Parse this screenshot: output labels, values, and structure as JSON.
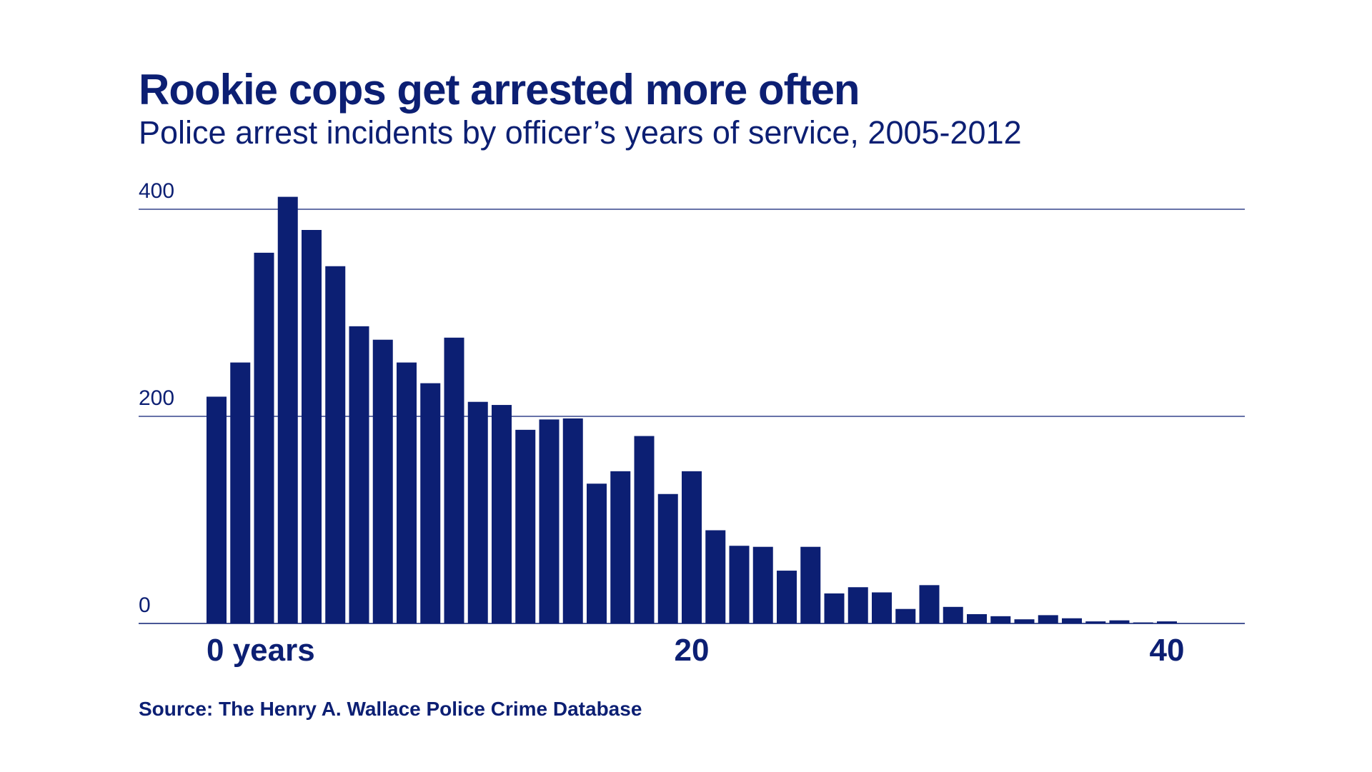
{
  "header": {
    "title": "Rookie cops get arrested more often",
    "subtitle": "Police arrest incidents by officer’s years of service, 2005-2012"
  },
  "footer": {
    "source": "Source: The Henry A. Wallace Police Crime Database"
  },
  "colors": {
    "bar": "#0c1f73",
    "text": "#0c1f73",
    "grid": "#0c1f73",
    "background": "#ffffff"
  },
  "chart_data": {
    "type": "bar",
    "xlabel": "",
    "ylabel": "",
    "ylim": [
      0,
      400
    ],
    "xlim": [
      0,
      40
    ],
    "grid": true,
    "y_ticks": [
      {
        "value": 400,
        "label": "400"
      },
      {
        "value": 200,
        "label": "200"
      },
      {
        "value": 0,
        "label": "0"
      }
    ],
    "x_ticks": [
      {
        "value": 0,
        "label": "0 years"
      },
      {
        "value": 20,
        "label": "20"
      },
      {
        "value": 40,
        "label": "40"
      }
    ],
    "categories": [
      0,
      1,
      2,
      3,
      4,
      5,
      6,
      7,
      8,
      9,
      10,
      11,
      12,
      13,
      14,
      15,
      16,
      17,
      18,
      19,
      20,
      21,
      22,
      23,
      24,
      25,
      26,
      27,
      28,
      29,
      30,
      31,
      32,
      33,
      34,
      35,
      36,
      37,
      38,
      39,
      40
    ],
    "values": [
      219,
      252,
      358,
      412,
      380,
      345,
      287,
      274,
      252,
      232,
      276,
      214,
      211,
      187,
      197,
      198,
      135,
      147,
      181,
      125,
      147,
      90,
      75,
      74,
      51,
      74,
      29,
      35,
      30,
      14,
      37,
      16,
      9,
      7,
      4,
      8,
      5,
      2,
      3,
      1,
      2
    ]
  }
}
